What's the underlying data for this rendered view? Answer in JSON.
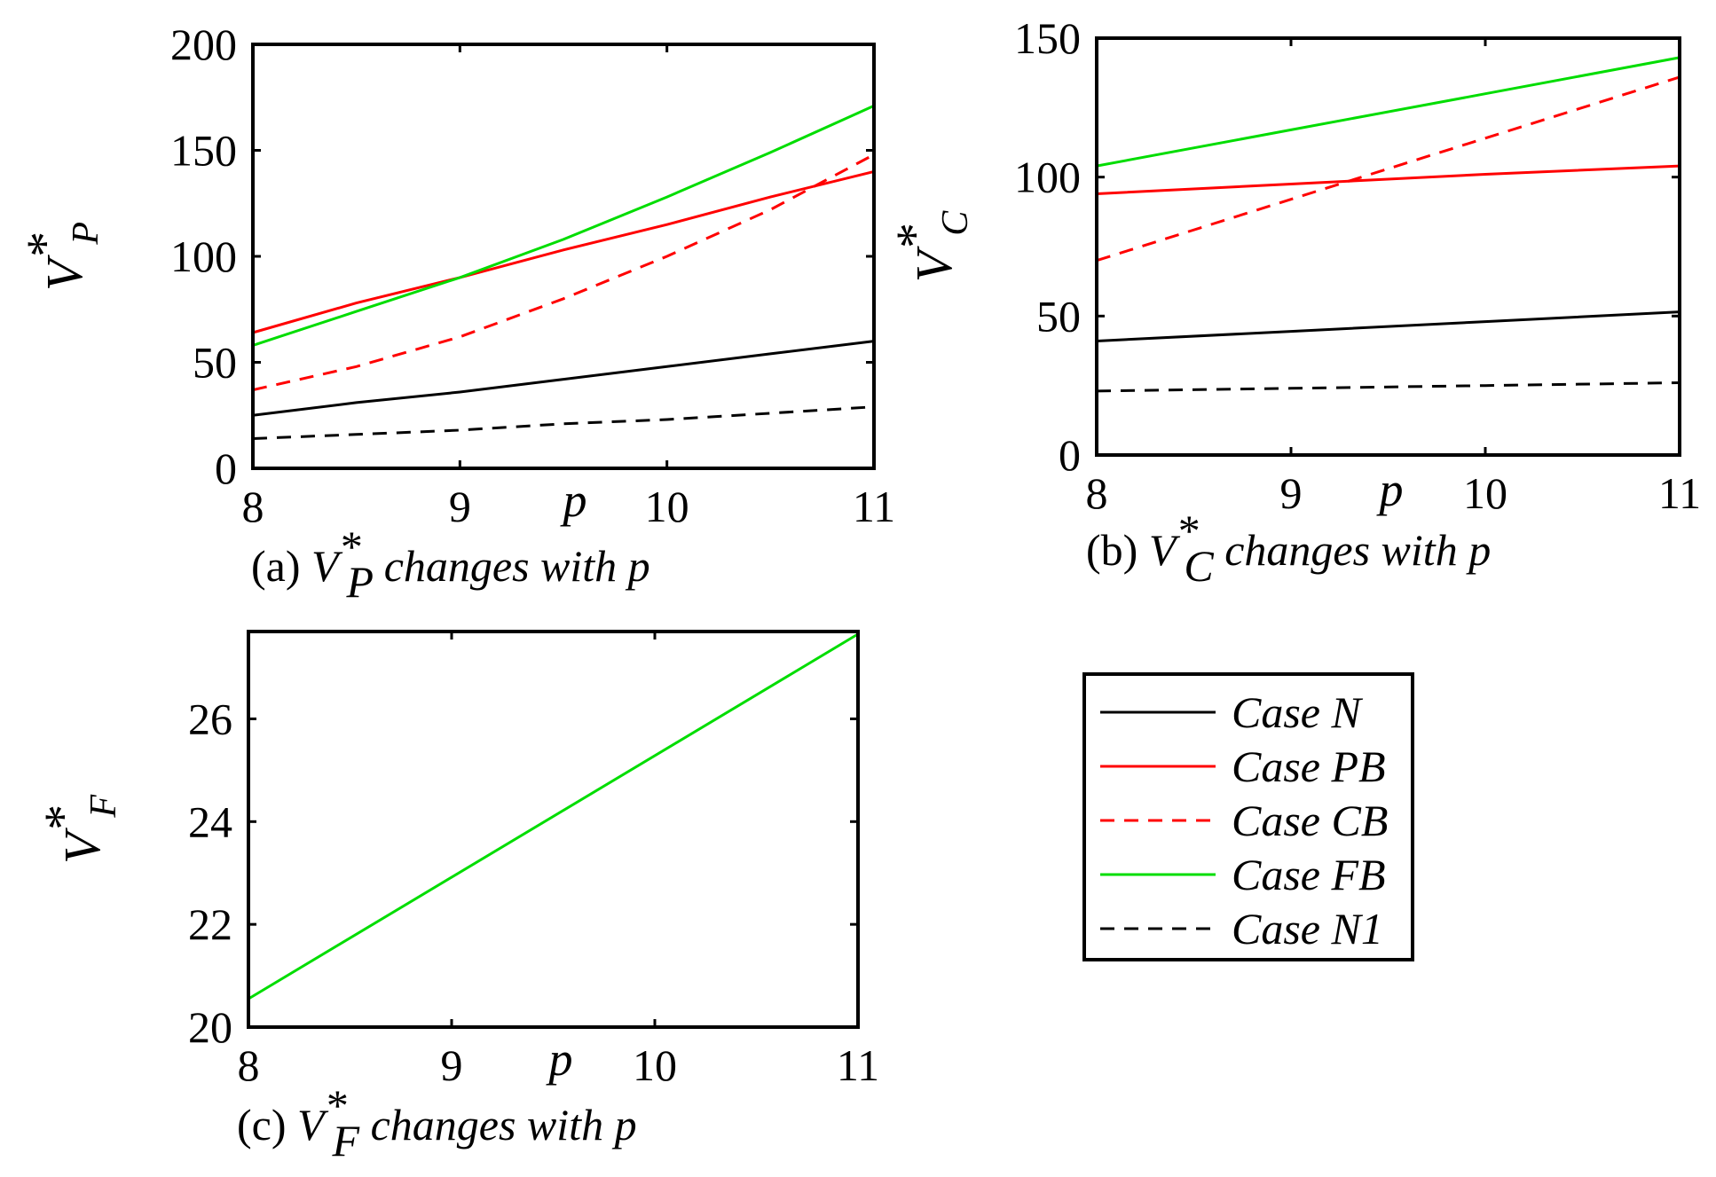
{
  "legend": {
    "entries": [
      {
        "name": "Case N",
        "label_prefix": "Case ",
        "label_symbol": "N",
        "label_suffix": "",
        "color": "#000000",
        "dash": "solid"
      },
      {
        "name": "Case PB",
        "label_prefix": "Case ",
        "label_symbol": "PB",
        "label_suffix": "",
        "color": "#ff0000",
        "dash": "solid"
      },
      {
        "name": "Case CB",
        "label_prefix": "Case ",
        "label_symbol": "CB",
        "label_suffix": "",
        "color": "#ff0000",
        "dash": "dashed"
      },
      {
        "name": "Case FB",
        "label_prefix": "Case ",
        "label_symbol": "FB",
        "label_suffix": "",
        "color": "#00dd00",
        "dash": "solid"
      },
      {
        "name": "Case N1",
        "label_prefix": "Case ",
        "label_symbol": "N",
        "label_suffix": "1",
        "color": "#000000",
        "dash": "dashed"
      }
    ]
  },
  "chart_data": [
    {
      "id": "a",
      "type": "line",
      "xlabel": "p",
      "ylabel": {
        "main": "V",
        "sup": "*",
        "sub": "P"
      },
      "caption": {
        "prefix": "(a) ",
        "var": "V",
        "sup": "*",
        "sub": "P",
        "rest": " changes with p"
      },
      "xlim": [
        8,
        11
      ],
      "ylim": [
        0,
        200
      ],
      "xticks": [
        8,
        9,
        10,
        11
      ],
      "yticks": [
        0,
        50,
        100,
        150,
        200
      ],
      "x": [
        8,
        8.5,
        9,
        9.5,
        10,
        10.5,
        11
      ],
      "series": [
        {
          "name": "Case N",
          "values": [
            25,
            31,
            36,
            42,
            48,
            54,
            60
          ]
        },
        {
          "name": "Case PB",
          "values": [
            64,
            78,
            90,
            103,
            115,
            128,
            140
          ]
        },
        {
          "name": "Case CB",
          "values": [
            37,
            48,
            62,
            80,
            100,
            122,
            148
          ]
        },
        {
          "name": "Case FB",
          "values": [
            58,
            74,
            90,
            108,
            128,
            149,
            171
          ]
        },
        {
          "name": "Case N1",
          "values": [
            14,
            16,
            18,
            21,
            23,
            26,
            29
          ]
        }
      ]
    },
    {
      "id": "b",
      "type": "line",
      "xlabel": "p",
      "ylabel": {
        "main": "V",
        "sup": "*",
        "sub": "C"
      },
      "caption": {
        "prefix": "(b) ",
        "var": "V",
        "sup": "*",
        "sub": "C",
        "rest": " changes with p"
      },
      "xlim": [
        8,
        11
      ],
      "ylim": [
        0,
        150
      ],
      "xticks": [
        8,
        9,
        10,
        11
      ],
      "yticks": [
        0,
        50,
        100,
        150
      ],
      "x": [
        8,
        9,
        10,
        11
      ],
      "series": [
        {
          "name": "Case N",
          "values": [
            41,
            44.5,
            48,
            51.5
          ]
        },
        {
          "name": "Case PB",
          "values": [
            94,
            97.5,
            101,
            104
          ]
        },
        {
          "name": "Case CB",
          "values": [
            70,
            92,
            114,
            136
          ]
        },
        {
          "name": "Case FB",
          "values": [
            104,
            117,
            130,
            143
          ]
        },
        {
          "name": "Case N1",
          "values": [
            23,
            24,
            25,
            26
          ]
        }
      ]
    },
    {
      "id": "c",
      "type": "line",
      "xlabel": "p",
      "ylabel": {
        "main": "V",
        "sup": "*",
        "sub": "F"
      },
      "caption": {
        "prefix": "(c) ",
        "var": "V",
        "sup": "*",
        "sub": "F",
        "rest": " changes with p"
      },
      "xlim": [
        8,
        11
      ],
      "ylim": [
        20,
        27.7
      ],
      "xticks": [
        8,
        9,
        10,
        11
      ],
      "yticks": [
        20,
        22,
        24,
        26
      ],
      "x": [
        8,
        11
      ],
      "series": [
        {
          "name": "Case FB",
          "values": [
            20.55,
            27.65
          ]
        }
      ]
    }
  ]
}
